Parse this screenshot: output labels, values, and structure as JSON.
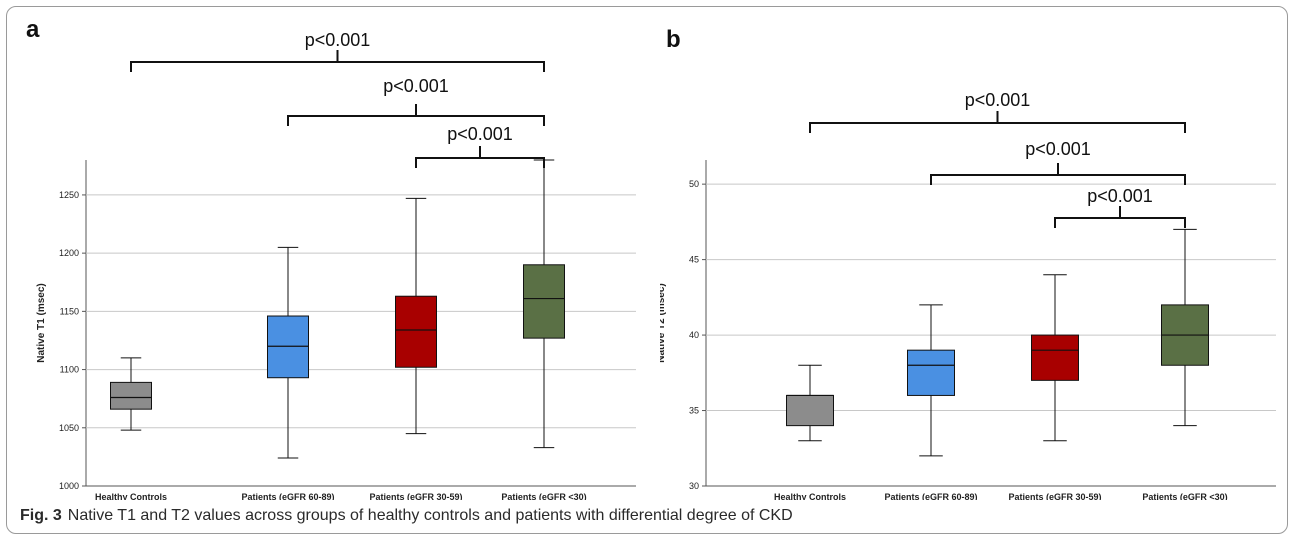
{
  "panels": [
    {
      "label": "a",
      "chart_data": {
        "type": "boxplot",
        "categories": [
          "Healthy Controls",
          "Patients (eGFR 60-89)",
          "Patients (eGFR 30-59)",
          "Patients (eGFR <30)"
        ],
        "ylabel": "Native T1 (msec)",
        "ylim": [
          1000,
          1280
        ],
        "yticks": [
          1000,
          1050,
          1100,
          1150,
          1200,
          1250
        ],
        "grid": true,
        "boxes": [
          {
            "min": 1048,
            "q1": 1066,
            "median": 1076,
            "q3": 1089,
            "max": 1110,
            "color": "#8c8c8c"
          },
          {
            "min": 1024,
            "q1": 1093,
            "median": 1120,
            "q3": 1146,
            "max": 1205,
            "color": "#4a90e2"
          },
          {
            "min": 1045,
            "q1": 1102,
            "median": 1134,
            "q3": 1163,
            "max": 1247,
            "color": "#a80000"
          },
          {
            "min": 1033,
            "q1": 1127,
            "median": 1161,
            "q3": 1190,
            "max": 1280,
            "color": "#5a7045"
          }
        ],
        "annotations": [
          {
            "from": 0,
            "to": 3,
            "text": "p<0.001"
          },
          {
            "from": 1,
            "to": 3,
            "text": "p<0.001"
          },
          {
            "from": 2,
            "to": 3,
            "text": "p<0.001"
          }
        ]
      }
    },
    {
      "label": "b",
      "chart_data": {
        "type": "boxplot",
        "categories": [
          "Healthy Controls",
          "Patients (eGFR 60-89)",
          "Patients (eGFR 30-59)",
          "Patients (eGFR <30)"
        ],
        "ylabel": "Native T2 (msec)",
        "ylim": [
          30,
          51.6
        ],
        "yticks": [
          30,
          35,
          40,
          45,
          50
        ],
        "grid": true,
        "boxes": [
          {
            "min": 33,
            "q1": 34,
            "median": 36,
            "q3": 36,
            "max": 38,
            "color": "#8c8c8c"
          },
          {
            "min": 32,
            "q1": 36,
            "median": 38,
            "q3": 39,
            "max": 42,
            "color": "#4a90e2"
          },
          {
            "min": 33,
            "q1": 37,
            "median": 39,
            "q3": 40,
            "max": 44,
            "color": "#a80000"
          },
          {
            "min": 34,
            "q1": 38,
            "median": 40,
            "q3": 42,
            "max": 47,
            "color": "#5a7045"
          }
        ],
        "annotations": [
          {
            "from": 0,
            "to": 3,
            "text": "p<0.001"
          },
          {
            "from": 1,
            "to": 3,
            "text": "p<0.001"
          },
          {
            "from": 2,
            "to": 3,
            "text": "p<0.001"
          }
        ]
      }
    }
  ],
  "caption": {
    "fig_label": "Fig. 3",
    "text": "Native T1 and T2 values across groups of healthy controls and patients with differential degree of CKD"
  }
}
